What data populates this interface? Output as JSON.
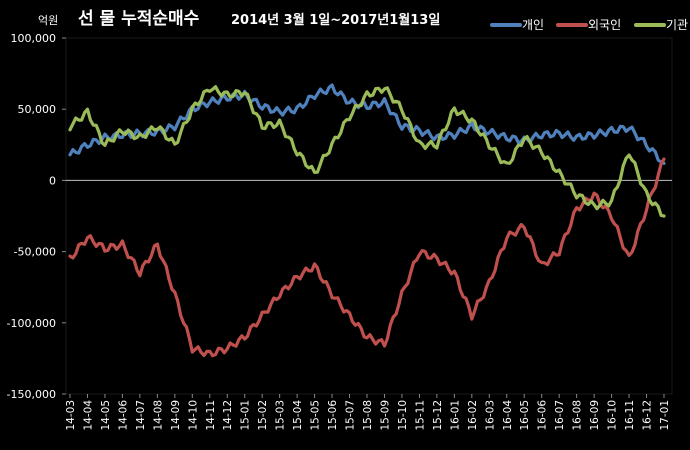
{
  "chart_data": {
    "type": "line",
    "title_main": "선 물  누적순매수",
    "title_sub": "2014년 3월 1일~2017년1월13일",
    "unit_label": "억원",
    "ylim": [
      -150000,
      100000
    ],
    "yticks": [
      100000,
      50000,
      0,
      -50000,
      -100000,
      -150000
    ],
    "ytick_labels": [
      "100,000",
      "50,000",
      "0",
      "-50,000",
      "-100,000",
      "-150,000"
    ],
    "x_tick_labels": [
      "14-03",
      "14-04",
      "14-05",
      "14-06",
      "14-07",
      "14-08",
      "14-09",
      "14-10",
      "14-11",
      "14-12",
      "15-01",
      "15-02",
      "15-03",
      "15-04",
      "15-05",
      "15-06",
      "15-07",
      "15-08",
      "15-09",
      "15-10",
      "15-11",
      "15-12",
      "16-01",
      "16-02",
      "16-03",
      "16-04",
      "16-05",
      "16-06",
      "16-07",
      "16-08",
      "16-09",
      "16-10",
      "16-11",
      "16-12",
      "17-01"
    ],
    "grid": false,
    "legend_position": "top-right",
    "series": [
      {
        "name": "개인",
        "color": "#4f81bd",
        "values": [
          18000,
          25000,
          30000,
          32000,
          33000,
          34000,
          38000,
          50000,
          55000,
          58000,
          60000,
          52000,
          48000,
          50000,
          60000,
          65000,
          55000,
          52000,
          55000,
          38000,
          35000,
          30000,
          32000,
          38000,
          34000,
          30000,
          28000,
          32000,
          33000,
          30000,
          32000,
          35000,
          37000,
          25000,
          12000
        ]
      },
      {
        "name": "외국인",
        "color": "#c0504d",
        "values": [
          -55000,
          -40000,
          -48000,
          -45000,
          -65000,
          -45000,
          -80000,
          -118000,
          -122000,
          -118000,
          -110000,
          -95000,
          -80000,
          -68000,
          -60000,
          -80000,
          -95000,
          -110000,
          -115000,
          -80000,
          -50000,
          -55000,
          -65000,
          -95000,
          -72000,
          -40000,
          -32000,
          -60000,
          -50000,
          -20000,
          -10000,
          -25000,
          -55000,
          -20000,
          15000
        ]
      },
      {
        "name": "기관",
        "color": "#9bbb59",
        "values": [
          38000,
          48000,
          25000,
          35000,
          30000,
          38000,
          25000,
          50000,
          65000,
          60000,
          62000,
          38000,
          40000,
          20000,
          5000,
          25000,
          45000,
          60000,
          65000,
          50000,
          25000,
          25000,
          50000,
          42000,
          25000,
          10000,
          30000,
          20000,
          5000,
          -10000,
          -18000,
          -15000,
          20000,
          -10000,
          -25000
        ]
      }
    ]
  }
}
